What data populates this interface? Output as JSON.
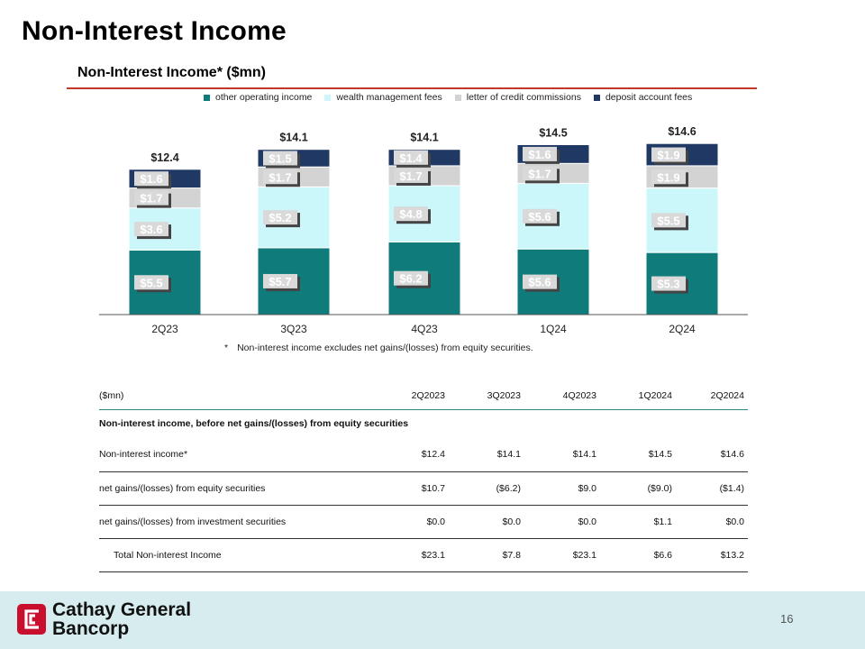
{
  "page": {
    "title": "Non-Interest Income",
    "number": "16"
  },
  "chart_data": {
    "type": "bar",
    "stacked": true,
    "title": "Non-Interest Income* ($mn)",
    "categories": [
      "2Q23",
      "3Q23",
      "4Q23",
      "1Q24",
      "2Q24"
    ],
    "series": [
      {
        "name": "other operating income",
        "color": "#0f7b7b",
        "values": [
          5.5,
          5.7,
          6.2,
          5.6,
          5.3
        ],
        "labels": [
          "$5.5",
          "$5.7",
          "$6.2",
          "$5.6",
          "$5.3"
        ]
      },
      {
        "name": "wealth management fees",
        "color": "#cbf7fb",
        "values": [
          3.6,
          5.2,
          4.8,
          5.6,
          5.5
        ],
        "labels": [
          "$3.6",
          "$5.2",
          "$4.8",
          "$5.6",
          "$5.5"
        ]
      },
      {
        "name": "letter of credit commissions",
        "color": "#d3d3d3",
        "values": [
          1.7,
          1.7,
          1.7,
          1.7,
          1.9
        ],
        "labels": [
          "$1.7",
          "$1.7",
          "$1.7",
          "$1.7",
          "$1.9"
        ]
      },
      {
        "name": "deposit account fees",
        "color": "#1f3864",
        "values": [
          1.6,
          1.5,
          1.4,
          1.6,
          1.9
        ],
        "labels": [
          "$1.6",
          "$1.5",
          "$1.4",
          "$1.6",
          "$1.9"
        ]
      }
    ],
    "totals": [
      12.4,
      14.1,
      14.1,
      14.5,
      14.6
    ],
    "total_labels": [
      "$12.4",
      "$14.1",
      "$14.1",
      "$14.5",
      "$14.6"
    ],
    "xlabel": "",
    "ylabel": "",
    "ylim": [
      0,
      16
    ],
    "grid": false,
    "legend_position": "top"
  },
  "footnote": {
    "mark": "*",
    "text": "Non-interest income excludes net gains/(losses) from equity securities."
  },
  "table": {
    "header": [
      "($mn)",
      "2Q2023",
      "3Q2023",
      "4Q2023",
      "1Q2024",
      "2Q2024"
    ],
    "section": "Non-interest income, before net gains/(losses) from equity securities",
    "rows": [
      {
        "label": "Non-interest income*",
        "values": [
          "$12.4",
          "$14.1",
          "$14.1",
          "$14.5",
          "$14.6"
        ]
      },
      {
        "label": "net gains/(losses) from equity securities",
        "values": [
          "$10.7",
          "($6.2)",
          "$9.0",
          "($9.0)",
          "($1.4)"
        ]
      },
      {
        "label": "net gains/(losses) from investment securities",
        "values": [
          "$0.0",
          "$0.0",
          "$0.0",
          "$1.1",
          "$0.0"
        ]
      },
      {
        "label": "Total Non-interest Income",
        "values": [
          "$23.1",
          "$7.8",
          "$23.1",
          "$6.6",
          "$13.2"
        ]
      }
    ]
  },
  "logo": {
    "line1": "Cathay General",
    "line2": "Bancorp",
    "color": "#c8102e"
  }
}
